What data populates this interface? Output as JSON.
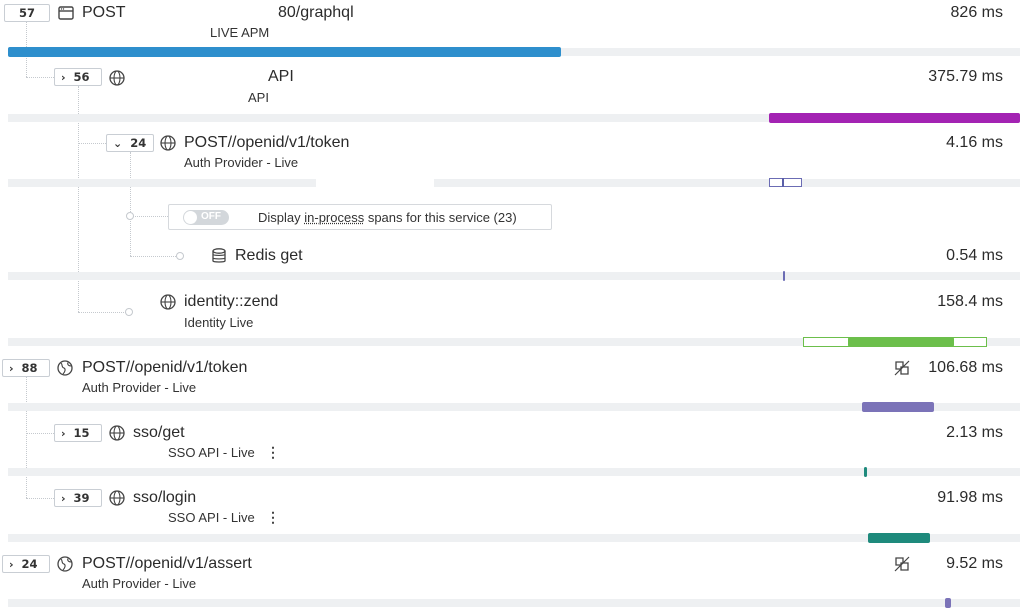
{
  "spans": [
    {
      "id": "root",
      "count": "57",
      "name_left": "POST",
      "name_right": "80/graphql",
      "service": "LIVE APM",
      "duration": "826 ms"
    },
    {
      "id": "api",
      "count": "56",
      "name": "API",
      "service": "API",
      "duration": "375.79 ms"
    },
    {
      "id": "token1",
      "count": "24",
      "name": "POST//openid/v1/token",
      "service": "Auth Provider - Live",
      "duration": "4.16 ms"
    },
    {
      "id": "redis",
      "name": "Redis get",
      "duration": "0.54 ms"
    },
    {
      "id": "identity",
      "name": "identity::zend",
      "service": "Identity Live",
      "duration": "158.4 ms"
    },
    {
      "id": "token2",
      "count": "88",
      "name": "POST//openid/v1/token",
      "service": "Auth Provider - Live",
      "duration": "106.68 ms"
    },
    {
      "id": "ssoget",
      "count": "15",
      "name": "sso/get",
      "service": "SSO API - Live",
      "duration": "2.13 ms"
    },
    {
      "id": "ssologin",
      "count": "39",
      "name": "sso/login",
      "service": "SSO API - Live",
      "duration": "91.98 ms"
    },
    {
      "id": "assert",
      "count": "24",
      "name": "POST//openid/v1/assert",
      "service": "Auth Provider - Live",
      "duration": "9.52 ms"
    }
  ],
  "toggle": {
    "state": "OFF",
    "text_before": "Display ",
    "text_link": "in-process",
    "text_after": " spans for this service (23)"
  },
  "colors": {
    "root_bar": "#2e8fcd",
    "api_bar": "#a323b3",
    "token_bar": "#5a5fa8",
    "redis_bar": "#6b6cb4",
    "identity_bar": "#6cbf4b",
    "token2_bar": "#7b73b8",
    "sso_bar": "#1e8a7c"
  },
  "icons": {
    "root": "window-icon",
    "service": "globe-icon",
    "redis": "database-icon",
    "external": "globe-alt-icon",
    "remote": "remote-link-icon"
  }
}
